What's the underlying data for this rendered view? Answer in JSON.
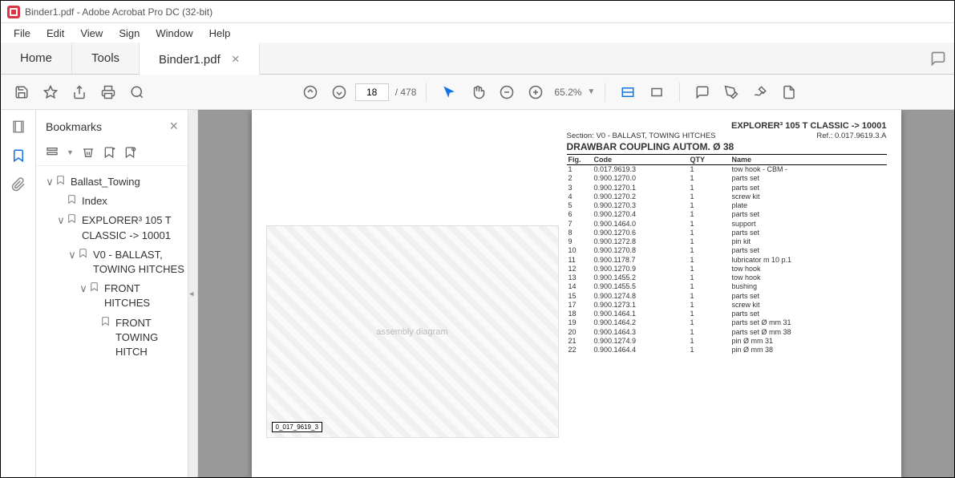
{
  "title": "Binder1.pdf - Adobe Acrobat Pro DC (32-bit)",
  "menu": [
    "File",
    "Edit",
    "View",
    "Sign",
    "Window",
    "Help"
  ],
  "tabs": {
    "home": "Home",
    "tools": "Tools",
    "doc": "Binder1.pdf"
  },
  "toolbar": {
    "page": "18",
    "total": "/  478",
    "zoom": "65.2%"
  },
  "bm": {
    "title": "Bookmarks",
    "items": [
      {
        "d": 0,
        "tw": "∨",
        "label": "Ballast_Towing"
      },
      {
        "d": 1,
        "tw": "",
        "label": "Index"
      },
      {
        "d": 1,
        "tw": "∨",
        "label": "EXPLORER³ 105 T CLASSIC -> 10001"
      },
      {
        "d": 2,
        "tw": "∨",
        "label": "V0 - BALLAST, TOWING HITCHES"
      },
      {
        "d": 3,
        "tw": "∨",
        "label": "FRONT HITCHES"
      },
      {
        "d": 4,
        "tw": "",
        "label": "FRONT TOWING HITCH"
      }
    ]
  },
  "doc": {
    "model": "EXPLORER³ 105 T CLASSIC -> 10001",
    "section": "Section: V0 - BALLAST, TOWING HITCHES",
    "ref": "Ref.: 0.017.9619.3.A",
    "heading": "DRAWBAR COUPLING AUTOM. Ø 38",
    "cols": [
      "Fig.",
      "Code",
      "QTY",
      "Name"
    ],
    "rows": [
      [
        "1",
        "0.017.9619.3",
        "1",
        "tow hook - CBM -"
      ],
      [
        "2",
        "0.900.1270.0",
        "1",
        "parts set"
      ],
      [
        "3",
        "0.900.1270.1",
        "1",
        "parts set"
      ],
      [
        "4",
        "0.900.1270.2",
        "1",
        "screw kit"
      ],
      [
        "5",
        "0.900.1270.3",
        "1",
        "plate"
      ],
      [
        "6",
        "0.900.1270.4",
        "1",
        "parts set"
      ],
      [
        "7",
        "0.900.1464.0",
        "1",
        "support"
      ],
      [
        "8",
        "0.900.1270.6",
        "1",
        "parts set"
      ],
      [
        "9",
        "0.900.1272.8",
        "1",
        "pin kit"
      ],
      [
        "10",
        "0.900.1270.8",
        "1",
        "parts set"
      ],
      [
        "11",
        "0.900.1178.7",
        "1",
        "lubricator m 10 p.1"
      ],
      [
        "12",
        "0.900.1270.9",
        "1",
        "tow hook"
      ],
      [
        "13",
        "0.900.1455.2",
        "1",
        "tow hook"
      ],
      [
        "14",
        "0.900.1455.5",
        "1",
        "bushing"
      ],
      [
        "15",
        "0.900.1274.8",
        "1",
        "parts set"
      ],
      [
        "17",
        "0.900.1273.1",
        "1",
        "screw kit"
      ],
      [
        "18",
        "0.900.1464.1",
        "1",
        "parts set"
      ],
      [
        "19",
        "0.900.1464.2",
        "1",
        "parts set Ø mm 31"
      ],
      [
        "20",
        "0.900.1464.3",
        "1",
        "parts set Ø mm 38"
      ],
      [
        "21",
        "0.900.1274.9",
        "1",
        "pin Ø mm 31"
      ],
      [
        "22",
        "0.900.1464.4",
        "1",
        "pin Ø mm 38"
      ]
    ]
  }
}
